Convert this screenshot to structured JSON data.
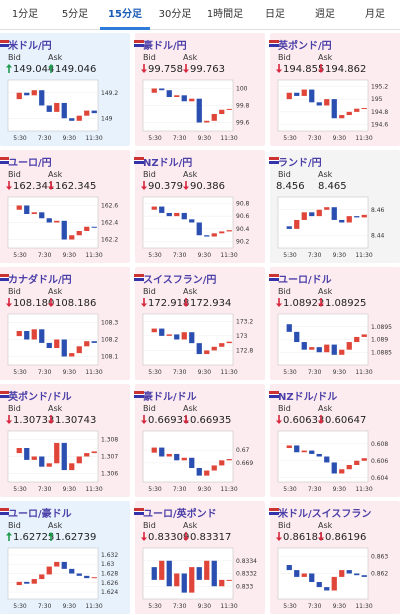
{
  "tabs": [
    "1分足",
    "5分足",
    "15分足",
    "30分足",
    "1時間足",
    "日足",
    "週足",
    "月足"
  ],
  "active_tab": 2,
  "bid_label": "Bid",
  "ask_label": "Ask",
  "cards": [
    {
      "pair": "米ドル/円",
      "trend": "up",
      "bid": "149.044",
      "ask": "149.046",
      "chart": {
        "type": "candlestick",
        "ylim": [
          148.9,
          149.3
        ],
        "yticks": [
          149.2,
          149
        ],
        "xticks": [
          "5:30",
          "7:30",
          "9:30",
          "11:30"
        ],
        "values": [
          149.15,
          149.2,
          149.18,
          149.22,
          149.1,
          149.05,
          149.12,
          149.0,
          148.98,
          149.02,
          149.06,
          149.04
        ]
      }
    },
    {
      "pair": "豪ドル/円",
      "trend": "down",
      "bid": "99.758",
      "ask": "99.763",
      "chart": {
        "type": "candlestick",
        "ylim": [
          99.5,
          100.1
        ],
        "yticks": [
          100,
          99.8,
          99.6
        ],
        "xticks": [
          "5:30",
          "7:30",
          "9:30",
          "11:30"
        ],
        "values": [
          99.95,
          100.0,
          99.98,
          99.9,
          99.92,
          99.85,
          99.88,
          99.6,
          99.62,
          99.7,
          99.75,
          99.76
        ]
      }
    },
    {
      "pair": "英ポンド/円",
      "trend": "down",
      "bid": "194.855",
      "ask": "194.862",
      "chart": {
        "type": "candlestick",
        "ylim": [
          194.5,
          195.3
        ],
        "yticks": [
          195.2,
          195,
          194.8,
          194.6
        ],
        "xticks": [
          "5:30",
          "7:30",
          "9:30",
          "11:30"
        ],
        "values": [
          195.0,
          195.1,
          195.05,
          195.15,
          194.95,
          194.9,
          195.0,
          194.7,
          194.75,
          194.8,
          194.85,
          194.86
        ]
      }
    },
    {
      "pair": "ユーロ/円",
      "trend": "down",
      "bid": "162.341",
      "ask": "162.345",
      "chart": {
        "type": "candlestick",
        "ylim": [
          162.1,
          162.7
        ],
        "yticks": [
          162.6,
          162.4,
          162.2
        ],
        "xticks": [
          "5:30",
          "7:30",
          "9:30",
          "11:30"
        ],
        "values": [
          162.55,
          162.6,
          162.5,
          162.52,
          162.45,
          162.4,
          162.42,
          162.2,
          162.25,
          162.3,
          162.35,
          162.34
        ]
      }
    },
    {
      "pair": "NZドル/円",
      "trend": "down",
      "bid": "90.379",
      "ask": "90.386",
      "chart": {
        "type": "candlestick",
        "ylim": [
          90.1,
          90.9
        ],
        "yticks": [
          90.8,
          90.6,
          90.4,
          90.2
        ],
        "xticks": [
          "5:30",
          "7:30",
          "9:30",
          "11:30"
        ],
        "values": [
          90.7,
          90.75,
          90.65,
          90.6,
          90.65,
          90.55,
          90.5,
          90.3,
          90.28,
          90.33,
          90.36,
          90.38
        ]
      }
    },
    {
      "pair": "ランド/円",
      "trend": "flat",
      "bid": "8.456",
      "ask": "8.465",
      "chart": {
        "type": "candlestick",
        "ylim": [
          8.43,
          8.47
        ],
        "yticks": [
          8.46,
          8.44
        ],
        "xticks": [
          "5:30",
          "7:30",
          "9:30",
          "11:30"
        ],
        "values": [
          8.447,
          8.445,
          8.452,
          8.458,
          8.455,
          8.46,
          8.462,
          8.452,
          8.45,
          8.455,
          8.454,
          8.456
        ]
      }
    },
    {
      "pair": "カナダドル/円",
      "trend": "down",
      "bid": "108.180",
      "ask": "108.186",
      "chart": {
        "type": "candlestick",
        "ylim": [
          108.05,
          108.35
        ],
        "yticks": [
          108.3,
          108.2,
          108.1
        ],
        "xticks": [
          "5:30",
          "7:30",
          "9:30",
          "11:30"
        ],
        "values": [
          108.22,
          108.25,
          108.2,
          108.26,
          108.18,
          108.15,
          108.2,
          108.1,
          108.12,
          108.16,
          108.19,
          108.18
        ]
      }
    },
    {
      "pair": "スイスフラン/円",
      "trend": "down",
      "bid": "172.918",
      "ask": "172.934",
      "chart": {
        "type": "candlestick",
        "ylim": [
          172.6,
          173.3
        ],
        "yticks": [
          173.2,
          173,
          172.8
        ],
        "xticks": [
          "5:30",
          "7:30",
          "9:30",
          "11:30"
        ],
        "values": [
          173.05,
          173.1,
          173.0,
          173.02,
          172.95,
          173.05,
          172.9,
          172.75,
          172.8,
          172.85,
          172.9,
          172.92
        ]
      }
    },
    {
      "pair": "ユーロ/ドル",
      "trend": "down",
      "bid": "1.08922",
      "ask": "1.08925",
      "chart": {
        "type": "candlestick",
        "ylim": [
          1.088,
          1.09
        ],
        "yticks": [
          1.0895,
          1.089,
          1.0885
        ],
        "xticks": [
          "5:30",
          "7:30",
          "9:30",
          "11:30"
        ],
        "values": [
          1.0896,
          1.0893,
          1.0889,
          1.0886,
          1.0887,
          1.0885,
          1.0888,
          1.0884,
          1.0886,
          1.0889,
          1.0891,
          1.0892
        ]
      }
    },
    {
      "pair": "英ポンド/ドル",
      "trend": "down",
      "bid": "1.30733",
      "ask": "1.30743",
      "chart": {
        "type": "candlestick",
        "ylim": [
          1.3055,
          1.3085
        ],
        "yticks": [
          1.308,
          1.307,
          1.306
        ],
        "xticks": [
          "5:30",
          "7:30",
          "9:30",
          "11:30"
        ],
        "values": [
          1.3072,
          1.3075,
          1.3068,
          1.307,
          1.3064,
          1.3066,
          1.3078,
          1.3062,
          1.3066,
          1.307,
          1.3072,
          1.3073
        ]
      }
    },
    {
      "pair": "豪ドル/ドル",
      "trend": "down",
      "bid": "0.66931",
      "ask": "0.66935",
      "chart": {
        "type": "candlestick",
        "ylim": [
          0.6675,
          0.6715
        ],
        "yticks": [
          0.67,
          0.669
        ],
        "xticks": [
          "5:30",
          "7:30",
          "9:30",
          "11:30"
        ],
        "values": [
          0.6698,
          0.6702,
          0.6695,
          0.6697,
          0.6692,
          0.6694,
          0.6686,
          0.668,
          0.6684,
          0.6688,
          0.6692,
          0.6693
        ]
      }
    },
    {
      "pair": "NZドル/ドル",
      "trend": "down",
      "bid": "0.60633",
      "ask": "0.60647",
      "chart": {
        "type": "candlestick",
        "ylim": [
          0.6035,
          0.6095
        ],
        "yticks": [
          0.608,
          0.606,
          0.604
        ],
        "xticks": [
          "5:30",
          "7:30",
          "9:30",
          "11:30"
        ],
        "values": [
          0.6075,
          0.6078,
          0.607,
          0.6072,
          0.6068,
          0.6065,
          0.6058,
          0.6045,
          0.605,
          0.6055,
          0.606,
          0.6063
        ]
      }
    },
    {
      "pair": "ユーロ/豪ドル",
      "trend": "up",
      "bid": "1.62725",
      "ask": "1.62739",
      "chart": {
        "type": "candlestick",
        "ylim": [
          1.6225,
          1.6335
        ],
        "yticks": [
          1.632,
          1.63,
          1.628,
          1.626,
          1.624
        ],
        "xticks": [
          "5:30",
          "7:30",
          "9:30",
          "11:30"
        ],
        "values": [
          1.6255,
          1.6262,
          1.6258,
          1.6268,
          1.6278,
          1.6295,
          1.6305,
          1.629,
          1.628,
          1.6275,
          1.627,
          1.6272
        ]
      }
    },
    {
      "pair": "ユーロ/英ポンド",
      "trend": "down",
      "bid": "0.83309",
      "ask": "0.83317",
      "chart": {
        "type": "candlestick",
        "ylim": [
          0.8328,
          0.8336
        ],
        "yticks": [
          0.8334,
          0.8332,
          0.833
        ],
        "xticks": [
          "5:30",
          "7:30",
          "9:30",
          "11:30"
        ],
        "values": [
          0.8333,
          0.8331,
          0.8334,
          0.833,
          0.8332,
          0.8329,
          0.8333,
          0.8331,
          0.8334,
          0.833,
          0.8331,
          0.8331
        ]
      }
    },
    {
      "pair": "米ドル/スイスフラン",
      "trend": "down",
      "bid": "0.86181",
      "ask": "0.86196",
      "chart": {
        "type": "candlestick",
        "ylim": [
          0.8605,
          0.8635
        ],
        "yticks": [
          0.863,
          0.862
        ],
        "xticks": [
          "5:30",
          "7:30",
          "9:30",
          "11:30"
        ],
        "values": [
          0.8625,
          0.8622,
          0.8618,
          0.862,
          0.8615,
          0.8612,
          0.861,
          0.8618,
          0.8622,
          0.862,
          0.8619,
          0.8618
        ]
      }
    }
  ]
}
